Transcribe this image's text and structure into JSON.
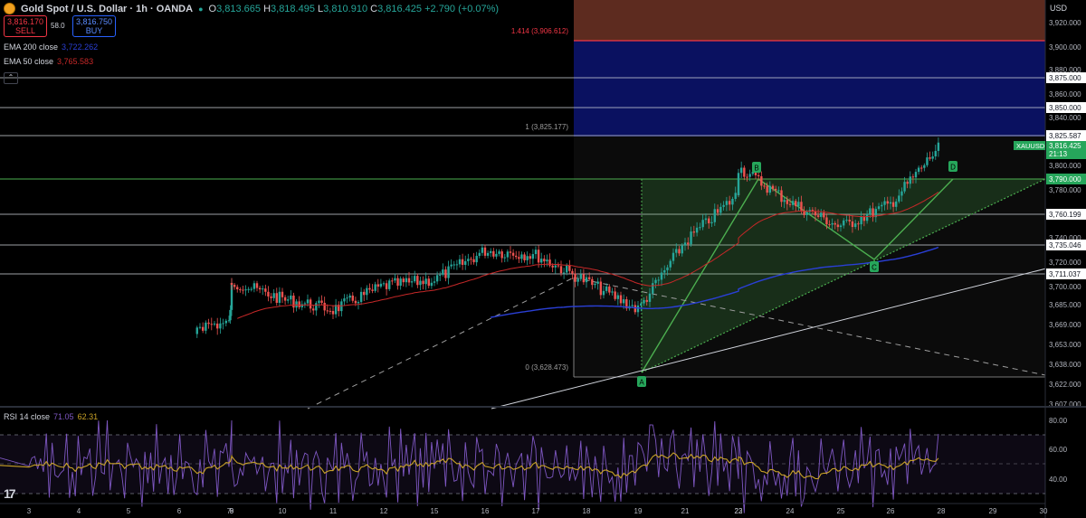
{
  "header": {
    "title": "Gold Spot / U.S. Dollar · 1h · OANDA",
    "o_label": "O",
    "o": "3,813.665",
    "h_label": "H",
    "h": "3,818.495",
    "l_label": "L",
    "l": "3,810.910",
    "c_label": "C",
    "c": "3,816.425",
    "change": "+2.790 (+0.07%)"
  },
  "trade": {
    "sell_price": "3,816.170",
    "sell_label": "SELL",
    "spread": "58.0",
    "buy_price": "3,816.750",
    "buy_label": "BUY"
  },
  "indicators": {
    "ema200_label": "EMA 200 close",
    "ema200_value": "3,722.262",
    "ema50_label": "EMA 50 close",
    "ema50_value": "3,765.583",
    "rsi_label": "RSI 14 close",
    "rsi_value": "71.05",
    "rsi_ma": "62.31"
  },
  "currency": "USD",
  "logo_text": "17",
  "colors": {
    "up": "#26a69a",
    "down": "#ef5350",
    "ema200": "#2a3fd6",
    "ema50": "#c62828",
    "pattern_fill": "rgba(76,175,80,0.15)",
    "pattern_line": "#4caf50",
    "fib_red": "#f23645",
    "fib_navy": "#0a1160",
    "fib_brown": "#5d2b1f",
    "rsi_line": "#7e57c2",
    "rsi_ma": "#c9a227",
    "label_green": "#26a65b"
  },
  "chart_data": {
    "type": "candlestick",
    "symbol": "XAUUSD",
    "timeframe": "1h",
    "ylim": [
      3600,
      3940
    ],
    "y_ticks": [
      "3,920.000",
      "3,900.000",
      "3,880.000",
      "3,860.000",
      "3,840.000",
      "3,800.000",
      "3,780.000",
      "3,740.000",
      "3,720.000",
      "3,700.000",
      "3,685.000",
      "3,669.000",
      "3,653.000",
      "3,638.000",
      "3,622.000",
      "3,607.000"
    ],
    "x_ticks": [
      "3",
      "4",
      "5",
      "6",
      "7",
      "8",
      "9",
      "10",
      "11",
      "12",
      "15",
      "16",
      "17",
      "18",
      "19",
      "21",
      "22",
      "23",
      "24",
      "25",
      "26",
      "28",
      "29",
      "30"
    ],
    "price_badges": [
      {
        "value": "3,875.000",
        "kind": "line"
      },
      {
        "value": "3,850.000",
        "kind": "line"
      },
      {
        "value": "3,825.587",
        "kind": "line"
      },
      {
        "value": "3,790.000",
        "kind": "highlight"
      },
      {
        "value": "3,760.199",
        "kind": "line"
      },
      {
        "value": "3,735.046",
        "kind": "line"
      },
      {
        "value": "3,711.037",
        "kind": "line"
      }
    ],
    "last_price": {
      "symbol": "XAUUSD",
      "value": "3,816.425",
      "countdown": "21:13"
    },
    "fib_labels": [
      {
        "text": "1.414 (3,906.612)",
        "price": 3906.612
      },
      {
        "text": "1 (3,825.177)",
        "price": 3825.177
      },
      {
        "text": "0 (3,628.473)",
        "price": 3628.473
      }
    ],
    "pattern_points": [
      {
        "label": "A",
        "price": 3628
      },
      {
        "label": "B",
        "price": 3792
      },
      {
        "label": "C",
        "price": 3722
      },
      {
        "label": "D",
        "price": 3800
      }
    ],
    "price_path": [
      {
        "x": "3",
        "y": 3600
      },
      {
        "x": "7",
        "y": 3612
      },
      {
        "x": "8",
        "y": 3650
      },
      {
        "x": "9",
        "y": 3660
      },
      {
        "x": "10",
        "y": 3640
      },
      {
        "x": "11",
        "y": 3628
      },
      {
        "x": "12",
        "y": 3655
      },
      {
        "x": "15",
        "y": 3662
      },
      {
        "x": "16",
        "y": 3695
      },
      {
        "x": "17",
        "y": 3690
      },
      {
        "x": "18",
        "y": 3660
      },
      {
        "x": "19",
        "y": 3628
      },
      {
        "x": "21",
        "y": 3705
      },
      {
        "x": "22",
        "y": 3760
      },
      {
        "x": "23",
        "y": 3790
      },
      {
        "x": "24",
        "y": 3750
      },
      {
        "x": "25",
        "y": 3722
      },
      {
        "x": "26",
        "y": 3748
      },
      {
        "x": "28",
        "y": 3816
      }
    ],
    "rsi": {
      "ylim": [
        20,
        85
      ],
      "ticks": [
        "80.00",
        "60.00",
        "40.00"
      ],
      "last": 71.05,
      "ma_last": 62.31
    }
  }
}
